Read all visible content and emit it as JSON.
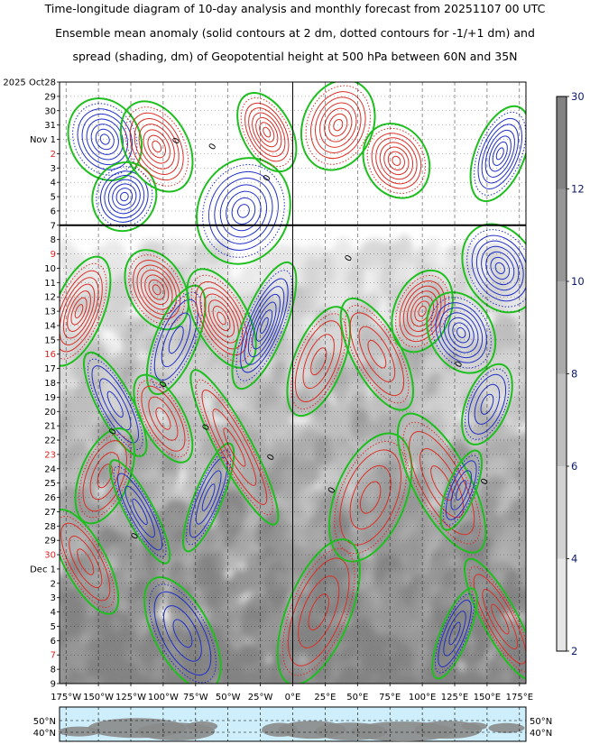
{
  "title": {
    "line1": "Time-longitude diagram of 10-day analysis and monthly forecast from 20251107 00 UTC",
    "line2": "Ensemble mean anomaly (solid contours at 2 dm, dotted contours for -1/+1 dm) and",
    "line3": "spread (shading, dm) of Geopotential height at 500 hPa between 60N and 35N"
  },
  "chart_data": {
    "type": "heatmap",
    "analysis_forecast_boundary": "Nov 7",
    "y_axis": {
      "labels": [
        {
          "text": "2025 Oct28",
          "red": false
        },
        {
          "text": "29",
          "red": false
        },
        {
          "text": "30",
          "red": false
        },
        {
          "text": "31",
          "red": false
        },
        {
          "text": "Nov  1",
          "red": false
        },
        {
          "text": "2",
          "red": true
        },
        {
          "text": "3",
          "red": false
        },
        {
          "text": "4",
          "red": false
        },
        {
          "text": "5",
          "red": false
        },
        {
          "text": "6",
          "red": false
        },
        {
          "text": "7",
          "red": false
        },
        {
          "text": "8",
          "red": false
        },
        {
          "text": "9",
          "red": true
        },
        {
          "text": "10",
          "red": false
        },
        {
          "text": "11",
          "red": false
        },
        {
          "text": "12",
          "red": false
        },
        {
          "text": "13",
          "red": false
        },
        {
          "text": "14",
          "red": false
        },
        {
          "text": "15",
          "red": false
        },
        {
          "text": "16",
          "red": true
        },
        {
          "text": "17",
          "red": false
        },
        {
          "text": "18",
          "red": false
        },
        {
          "text": "19",
          "red": false
        },
        {
          "text": "20",
          "red": false
        },
        {
          "text": "21",
          "red": false
        },
        {
          "text": "22",
          "red": false
        },
        {
          "text": "23",
          "red": true
        },
        {
          "text": "24",
          "red": false
        },
        {
          "text": "25",
          "red": false
        },
        {
          "text": "26",
          "red": false
        },
        {
          "text": "27",
          "red": false
        },
        {
          "text": "28",
          "red": false
        },
        {
          "text": "29",
          "red": false
        },
        {
          "text": "30",
          "red": true
        },
        {
          "text": "Dec  1",
          "red": false
        },
        {
          "text": "2",
          "red": false
        },
        {
          "text": "3",
          "red": false
        },
        {
          "text": "4",
          "red": false
        },
        {
          "text": "5",
          "red": false
        },
        {
          "text": "6",
          "red": false
        },
        {
          "text": "7",
          "red": true
        },
        {
          "text": "8",
          "red": false
        },
        {
          "text": "9",
          "red": false
        }
      ]
    },
    "x_axis": {
      "labels": [
        "175°W",
        "150°W",
        "125°W",
        "100°W",
        "75°W",
        "50°W",
        "25°W",
        "0°E",
        "25°E",
        "50°E",
        "75°E",
        "100°E",
        "125°E",
        "150°E",
        "175°E"
      ],
      "values": [
        -175,
        -150,
        -125,
        -100,
        -75,
        -50,
        -25,
        0,
        25,
        50,
        75,
        100,
        125,
        150,
        175
      ],
      "range": [
        -180,
        180
      ]
    },
    "map_strip": {
      "lat_labels": [
        "50°N",
        "40°N"
      ]
    },
    "colorbar": {
      "ticks": [
        2,
        4,
        6,
        8,
        10,
        12,
        30
      ],
      "colors": [
        "#e6e6e6",
        "#d2d2d2",
        "#bebebe",
        "#aaaaaa",
        "#969696",
        "#828282"
      ]
    },
    "contour_labels": [
      {
        "text": "0",
        "lon": -88,
        "day": 4.2
      },
      {
        "text": "0",
        "lon": -60,
        "day": 4.6
      },
      {
        "text": "0",
        "lon": -18,
        "day": 6.8
      },
      {
        "text": "0",
        "lon": 45,
        "day": 12.4
      },
      {
        "text": "0",
        "lon": 130,
        "day": 19.8
      },
      {
        "text": "0",
        "lon": -137,
        "day": 24.5
      },
      {
        "text": "0",
        "lon": 150,
        "day": 28.0
      },
      {
        "text": "0",
        "lon": -15,
        "day": 26.3
      },
      {
        "text": "0",
        "lon": 32,
        "day": 28.6
      },
      {
        "text": "0",
        "lon": -65,
        "day": 24.2
      },
      {
        "text": "0",
        "lon": -120,
        "day": 31.8
      },
      {
        "text": "0",
        "lon": -98,
        "day": 21.2
      }
    ],
    "anomaly_features": [
      {
        "sign": "neg",
        "lon": -145,
        "day": 4.0,
        "rx": 20,
        "ry": 2.2
      },
      {
        "sign": "neg",
        "lon": -130,
        "day": 8.0,
        "rx": 18,
        "ry": 1.8
      },
      {
        "sign": "pos",
        "lon": -105,
        "day": 4.5,
        "rx": 18,
        "ry": 2.5
      },
      {
        "sign": "neg",
        "lon": -38,
        "day": 9.0,
        "rx": 26,
        "ry": 2.8
      },
      {
        "sign": "pos",
        "lon": -20,
        "day": 3.5,
        "rx": 14,
        "ry": 2.2
      },
      {
        "sign": "pos",
        "lon": 35,
        "day": 3.0,
        "rx": 20,
        "ry": 2.4
      },
      {
        "sign": "pos",
        "lon": 80,
        "day": 5.5,
        "rx": 18,
        "ry": 2.0
      },
      {
        "sign": "neg",
        "lon": 160,
        "day": 5.0,
        "rx": 14,
        "ry": 2.6
      },
      {
        "sign": "neg",
        "lon": 160,
        "day": 13.0,
        "rx": 20,
        "ry": 2.4
      },
      {
        "sign": "pos",
        "lon": -165,
        "day": 16.0,
        "rx": 14,
        "ry": 3.0
      },
      {
        "sign": "pos",
        "lon": -105,
        "day": 14.5,
        "rx": 16,
        "ry": 2.2
      },
      {
        "sign": "neg",
        "lon": -90,
        "day": 18.0,
        "rx": 12,
        "ry": 3.0
      },
      {
        "sign": "pos",
        "lon": -55,
        "day": 16.5,
        "rx": 15,
        "ry": 2.8
      },
      {
        "sign": "neg",
        "lon": -22,
        "day": 17.0,
        "rx": 12,
        "ry": 3.5
      },
      {
        "sign": "neg",
        "lon": -137,
        "day": 22.5,
        "rx": 10,
        "ry": 3.0
      },
      {
        "sign": "pos",
        "lon": 20,
        "day": 19.5,
        "rx": 14,
        "ry": 3.0
      },
      {
        "sign": "pos",
        "lon": 65,
        "day": 19.0,
        "rx": 14,
        "ry": 3.2
      },
      {
        "sign": "pos",
        "lon": 100,
        "day": 16.0,
        "rx": 16,
        "ry": 2.2
      },
      {
        "sign": "neg",
        "lon": 130,
        "day": 17.5,
        "rx": 18,
        "ry": 2.2
      },
      {
        "sign": "neg",
        "lon": 150,
        "day": 22.5,
        "rx": 12,
        "ry": 2.2
      },
      {
        "sign": "pos",
        "lon": -100,
        "day": 23.5,
        "rx": 12,
        "ry": 2.5
      },
      {
        "sign": "pos",
        "lon": -145,
        "day": 27.5,
        "rx": 14,
        "ry": 2.6
      },
      {
        "sign": "neg",
        "lon": -118,
        "day": 30.0,
        "rx": 8,
        "ry": 3.0
      },
      {
        "sign": "neg",
        "lon": -65,
        "day": 29.0,
        "rx": 8,
        "ry": 3.0
      },
      {
        "sign": "pos",
        "lon": -45,
        "day": 25.5,
        "rx": 10,
        "ry": 4.5
      },
      {
        "sign": "pos",
        "lon": 60,
        "day": 29.0,
        "rx": 20,
        "ry": 3.5
      },
      {
        "sign": "pos",
        "lon": 115,
        "day": 28.0,
        "rx": 16,
        "ry": 4.0
      },
      {
        "sign": "neg",
        "lon": 130,
        "day": 28.5,
        "rx": 8,
        "ry": 2.2
      },
      {
        "sign": "neg",
        "lon": -85,
        "day": 38.5,
        "rx": 16,
        "ry": 3.2
      },
      {
        "sign": "pos",
        "lon": 20,
        "day": 37.0,
        "rx": 18,
        "ry": 4.0
      },
      {
        "sign": "pos",
        "lon": 160,
        "day": 37.5,
        "rx": 10,
        "ry": 3.5
      },
      {
        "sign": "neg",
        "lon": 125,
        "day": 38.5,
        "rx": 8,
        "ry": 2.5
      },
      {
        "sign": "pos",
        "lon": -160,
        "day": 33.5,
        "rx": 12,
        "ry": 3.0
      }
    ]
  }
}
